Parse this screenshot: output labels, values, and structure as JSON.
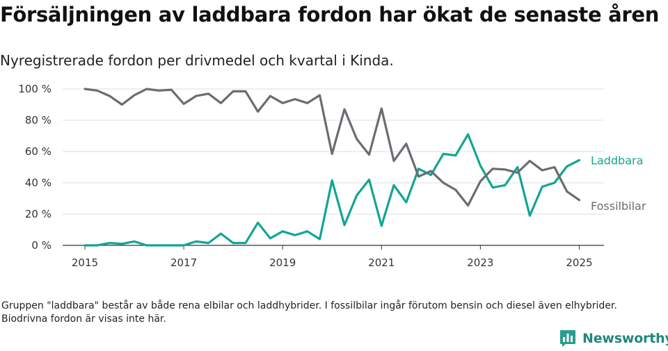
{
  "title": "Försäljningen av laddbara fordon har ökat de senaste åren",
  "subtitle": "Nyregistrerade fordon per drivmedel och kvartal i Kinda.",
  "footnote": "Gruppen \"laddbara\" består av både rena elbilar och laddhybrider. I fossilbilar ingår förutom bensin och diesel även elhybrider. Biodrivna fordon är visas inte här.",
  "brand": {
    "name": "Newsworthy",
    "icon": "newsworthy-logo-icon",
    "color": "#2a9d8f"
  },
  "chart_data": {
    "type": "line",
    "x_start": 2015.0,
    "x_step": 0.25,
    "xticks": [
      2015,
      2017,
      2019,
      2021,
      2023,
      2025
    ],
    "ylim": [
      0,
      100
    ],
    "yticks": [
      0,
      20,
      40,
      60,
      80,
      100
    ],
    "ytick_suffix": " %",
    "grid": true,
    "series": [
      {
        "name": "Fossilbilar",
        "color": "#6b6b73",
        "values": [
          100,
          99,
          95.5,
          90,
          96,
          100,
          99,
          99.5,
          90.5,
          95.5,
          97,
          91,
          98.5,
          98.5,
          85.5,
          95.5,
          91,
          93.5,
          91,
          96,
          58.5,
          87,
          68,
          58,
          87.5,
          54,
          65,
          44,
          47.5,
          40,
          35.5,
          25.5,
          41,
          49,
          48.5,
          46.5,
          54,
          48,
          50,
          34.5,
          29
        ]
      },
      {
        "name": "Laddbara",
        "color": "#12a594",
        "values": [
          0,
          0,
          1.5,
          1,
          2.5,
          0,
          0,
          0,
          0,
          2.5,
          1.5,
          7.5,
          1.5,
          1.5,
          14.5,
          4.5,
          9,
          6.5,
          9,
          4,
          41.5,
          13,
          32,
          42,
          12.5,
          38.5,
          27.5,
          49,
          45,
          58.5,
          57.5,
          71,
          51,
          37,
          38.5,
          50,
          19,
          37.5,
          40,
          50.5,
          54.5
        ]
      }
    ]
  }
}
